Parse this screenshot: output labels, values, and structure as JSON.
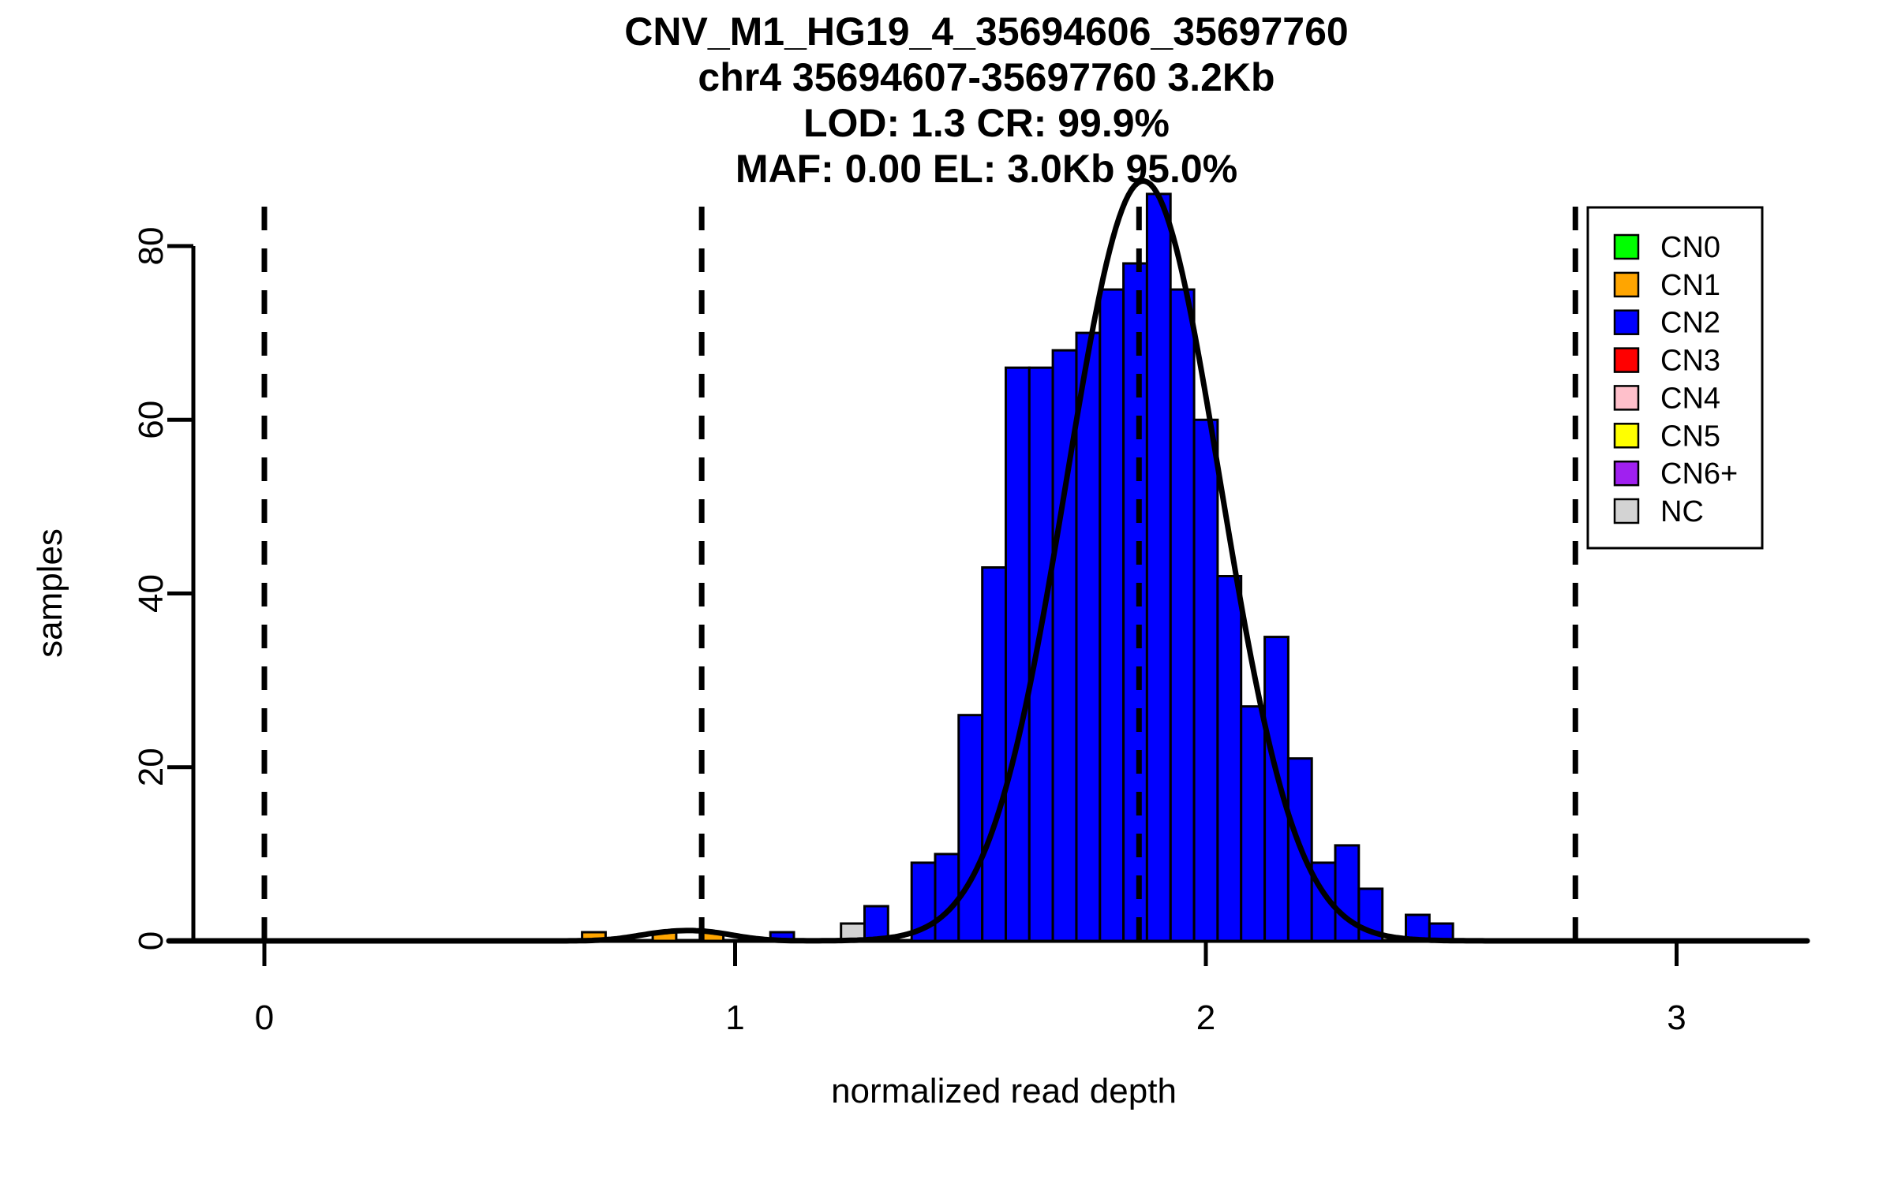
{
  "figure": {
    "title_lines": [
      "CNV_M1_HG19_4_35694606_35697760",
      "chr4 35694607-35697760 3.2Kb",
      "LOD: 1.3 CR: 99.9%",
      "MAF: 0.00 EL: 3.0Kb 95.0%"
    ]
  },
  "axes": {
    "x_label": "normalized read depth",
    "y_label": "samples",
    "x_ticks": [
      "0",
      "1",
      "2",
      "3"
    ],
    "x_tick_values": [
      0,
      1,
      2,
      3
    ],
    "y_ticks": [
      "0",
      "20",
      "40",
      "60",
      "80"
    ],
    "y_tick_values": [
      0,
      20,
      40,
      60,
      80
    ]
  },
  "legend": {
    "items": [
      {
        "label": "CN0",
        "color": "#00FF00"
      },
      {
        "label": "CN1",
        "color": "#FFA500"
      },
      {
        "label": "CN2",
        "color": "#0000FF"
      },
      {
        "label": "CN3",
        "color": "#FF0000"
      },
      {
        "label": "CN4",
        "color": "#FFC0CB"
      },
      {
        "label": "CN5",
        "color": "#FFFF00"
      },
      {
        "label": "CN6+",
        "color": "#A020F0"
      },
      {
        "label": "NC",
        "color": "#D3D3D3"
      }
    ]
  },
  "chart_data": {
    "type": "bar",
    "subtype": "histogram",
    "title": "CNV_M1_HG19_4_35694606_35697760",
    "subtitle_lines": [
      "chr4 35694607-35697760 3.2Kb",
      "LOD: 1.3 CR: 99.9%",
      "MAF: 0.00 EL: 3.0Kb 95.0%"
    ],
    "xlabel": "normalized read depth",
    "ylabel": "samples",
    "xlim": [
      -0.2,
      3.28
    ],
    "ylim": [
      0,
      86
    ],
    "grid": "off",
    "legend_position": "top-right",
    "bin_width": 0.05,
    "bars": [
      {
        "x0": 0.675,
        "count": 1,
        "cn": "CN1"
      },
      {
        "x0": 0.825,
        "count": 1,
        "cn": "CN1"
      },
      {
        "x0": 0.925,
        "count": 1,
        "cn": "CN1"
      },
      {
        "x0": 1.075,
        "count": 1,
        "cn": "CN2"
      },
      {
        "x0": 1.225,
        "count": 2,
        "cn": "NC"
      },
      {
        "x0": 1.275,
        "count": 4,
        "cn": "CN2"
      },
      {
        "x0": 1.375,
        "count": 9,
        "cn": "CN2"
      },
      {
        "x0": 1.425,
        "count": 10,
        "cn": "CN2"
      },
      {
        "x0": 1.475,
        "count": 26,
        "cn": "CN2"
      },
      {
        "x0": 1.525,
        "count": 43,
        "cn": "CN2"
      },
      {
        "x0": 1.575,
        "count": 66,
        "cn": "CN2"
      },
      {
        "x0": 1.625,
        "count": 66,
        "cn": "CN2"
      },
      {
        "x0": 1.675,
        "count": 68,
        "cn": "CN2"
      },
      {
        "x0": 1.725,
        "count": 70,
        "cn": "CN2"
      },
      {
        "x0": 1.775,
        "count": 75,
        "cn": "CN2"
      },
      {
        "x0": 1.825,
        "count": 78,
        "cn": "CN2"
      },
      {
        "x0": 1.875,
        "count": 86,
        "cn": "CN2"
      },
      {
        "x0": 1.925,
        "count": 75,
        "cn": "CN2"
      },
      {
        "x0": 1.975,
        "count": 60,
        "cn": "CN2"
      },
      {
        "x0": 2.025,
        "count": 42,
        "cn": "CN2"
      },
      {
        "x0": 2.075,
        "count": 27,
        "cn": "CN2"
      },
      {
        "x0": 2.125,
        "count": 35,
        "cn": "CN2"
      },
      {
        "x0": 2.175,
        "count": 21,
        "cn": "CN2"
      },
      {
        "x0": 2.225,
        "count": 9,
        "cn": "CN2"
      },
      {
        "x0": 2.275,
        "count": 11,
        "cn": "CN2"
      },
      {
        "x0": 2.325,
        "count": 6,
        "cn": "CN2"
      },
      {
        "x0": 2.425,
        "count": 3,
        "cn": "CN2"
      },
      {
        "x0": 2.475,
        "count": 2,
        "cn": "CN2"
      }
    ],
    "boundary_lines_x": [
      0.0,
      0.929,
      1.858,
      2.785
    ],
    "fit_curve": {
      "style": "gaussian-mixture",
      "components": [
        {
          "mean": 1.867,
          "sd": 0.163,
          "amplitude": 87.5
        },
        {
          "mean": 0.93,
          "sd": 0.07,
          "amplitude": 1.0
        },
        {
          "mean": 0.83,
          "sd": 0.06,
          "amplitude": 0.55
        }
      ]
    }
  }
}
